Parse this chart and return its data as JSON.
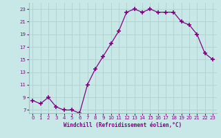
{
  "x": [
    0,
    1,
    2,
    3,
    4,
    5,
    6,
    7,
    8,
    9,
    10,
    11,
    12,
    13,
    14,
    15,
    16,
    17,
    18,
    19,
    20,
    21,
    22,
    23
  ],
  "y": [
    8.5,
    8.0,
    9.0,
    7.5,
    7.0,
    7.0,
    6.5,
    11.0,
    13.5,
    15.5,
    17.5,
    19.5,
    22.5,
    23.0,
    22.5,
    23.0,
    22.5,
    22.5,
    22.5,
    21.0,
    20.5,
    19.0,
    16.0,
    15.0
  ],
  "line_color": "#800080",
  "marker": "+",
  "marker_size": 4.0,
  "marker_lw": 1.2,
  "bg_color": "#c8e8e8",
  "grid_color": "#b0d0d0",
  "border_color": "#a0c0c0",
  "xlabel": "Windchill (Refroidissement éolien,°C)",
  "xlabel_color": "#800080",
  "tick_color": "#800080",
  "ylim": [
    6.5,
    24
  ],
  "xlim": [
    -0.5,
    23.5
  ],
  "yticks": [
    7,
    9,
    11,
    13,
    15,
    17,
    19,
    21,
    23
  ],
  "xticks": [
    0,
    1,
    2,
    3,
    4,
    5,
    6,
    7,
    8,
    9,
    10,
    11,
    12,
    13,
    14,
    15,
    16,
    17,
    18,
    19,
    20,
    21,
    22,
    23
  ],
  "line_width": 0.9,
  "tick_fontsize": 5.0,
  "xlabel_fontsize": 5.5
}
